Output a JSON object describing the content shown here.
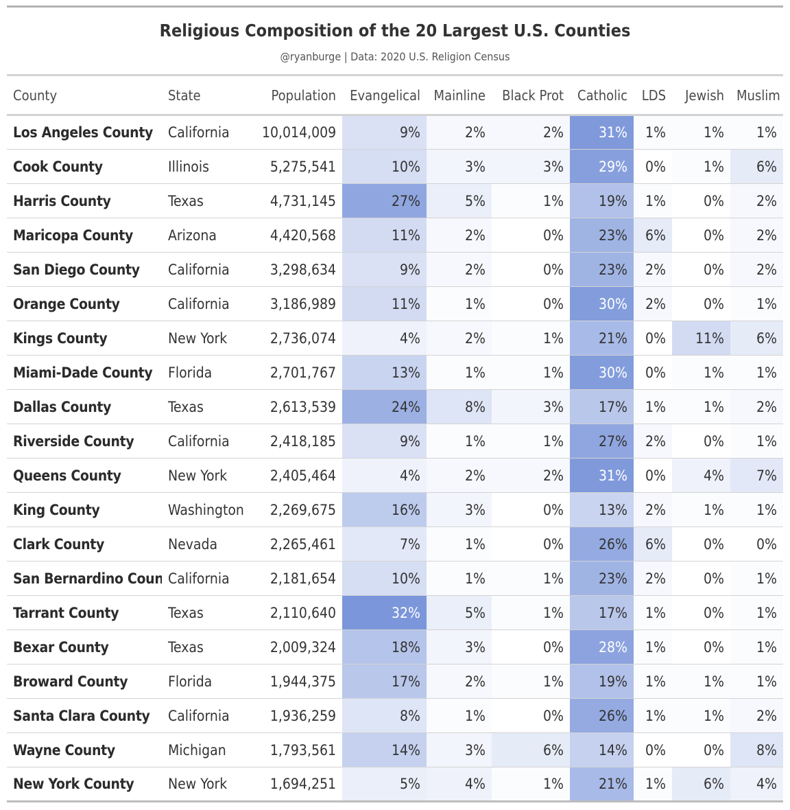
{
  "header": {
    "title": "Religious Composition of the 20 Largest U.S. Counties",
    "subtitle": "@ryanburge | Data: 2020 U.S. Religion Census"
  },
  "chart_data": {
    "type": "table",
    "columns": [
      "County",
      "State",
      "Population",
      "Evangelical",
      "Mainline",
      "Black Prot",
      "Catholic",
      "LDS",
      "Jewish",
      "Muslim"
    ],
    "rows": [
      [
        "Los Angeles County",
        "California",
        "10,014,009",
        "9%",
        "2%",
        "2%",
        "31%",
        "1%",
        "1%",
        "1%"
      ],
      [
        "Cook County",
        "Illinois",
        "5,275,541",
        "10%",
        "3%",
        "3%",
        "29%",
        "0%",
        "1%",
        "6%"
      ],
      [
        "Harris County",
        "Texas",
        "4,731,145",
        "27%",
        "5%",
        "1%",
        "19%",
        "1%",
        "0%",
        "2%"
      ],
      [
        "Maricopa County",
        "Arizona",
        "4,420,568",
        "11%",
        "2%",
        "0%",
        "23%",
        "6%",
        "0%",
        "2%"
      ],
      [
        "San Diego County",
        "California",
        "3,298,634",
        "9%",
        "2%",
        "0%",
        "23%",
        "2%",
        "0%",
        "2%"
      ],
      [
        "Orange County",
        "California",
        "3,186,989",
        "11%",
        "1%",
        "0%",
        "30%",
        "2%",
        "0%",
        "1%"
      ],
      [
        "Kings County",
        "New York",
        "2,736,074",
        "4%",
        "2%",
        "1%",
        "21%",
        "0%",
        "11%",
        "6%"
      ],
      [
        "Miami-Dade County",
        "Florida",
        "2,701,767",
        "13%",
        "1%",
        "1%",
        "30%",
        "0%",
        "1%",
        "1%"
      ],
      [
        "Dallas County",
        "Texas",
        "2,613,539",
        "24%",
        "8%",
        "3%",
        "17%",
        "1%",
        "1%",
        "2%"
      ],
      [
        "Riverside County",
        "California",
        "2,418,185",
        "9%",
        "1%",
        "1%",
        "27%",
        "2%",
        "0%",
        "1%"
      ],
      [
        "Queens County",
        "New York",
        "2,405,464",
        "4%",
        "2%",
        "2%",
        "31%",
        "0%",
        "4%",
        "7%"
      ],
      [
        "King County",
        "Washington",
        "2,269,675",
        "16%",
        "3%",
        "0%",
        "13%",
        "2%",
        "1%",
        "1%"
      ],
      [
        "Clark County",
        "Nevada",
        "2,265,461",
        "7%",
        "1%",
        "0%",
        "26%",
        "6%",
        "0%",
        "0%"
      ],
      [
        "San Bernardino County",
        "California",
        "2,181,654",
        "10%",
        "1%",
        "1%",
        "23%",
        "2%",
        "0%",
        "1%"
      ],
      [
        "Tarrant County",
        "Texas",
        "2,110,640",
        "32%",
        "5%",
        "1%",
        "17%",
        "1%",
        "0%",
        "1%"
      ],
      [
        "Bexar County",
        "Texas",
        "2,009,324",
        "18%",
        "3%",
        "0%",
        "28%",
        "1%",
        "0%",
        "1%"
      ],
      [
        "Broward County",
        "Florida",
        "1,944,375",
        "17%",
        "2%",
        "1%",
        "19%",
        "1%",
        "1%",
        "1%"
      ],
      [
        "Santa Clara County",
        "California",
        "1,936,259",
        "8%",
        "1%",
        "0%",
        "26%",
        "1%",
        "1%",
        "2%"
      ],
      [
        "Wayne County",
        "Michigan",
        "1,793,561",
        "14%",
        "3%",
        "6%",
        "14%",
        "0%",
        "0%",
        "8%"
      ],
      [
        "New York County",
        "New York",
        "1,694,251",
        "5%",
        "4%",
        "1%",
        "21%",
        "1%",
        "6%",
        "4%"
      ]
    ],
    "heatmap_columns": [
      "Evangelical",
      "Mainline",
      "Black Prot",
      "Catholic",
      "LDS",
      "Jewish",
      "Muslim"
    ],
    "color_scale": {
      "low": "#ffffff",
      "high": "#7b96da",
      "min": 0,
      "max": 32
    }
  }
}
